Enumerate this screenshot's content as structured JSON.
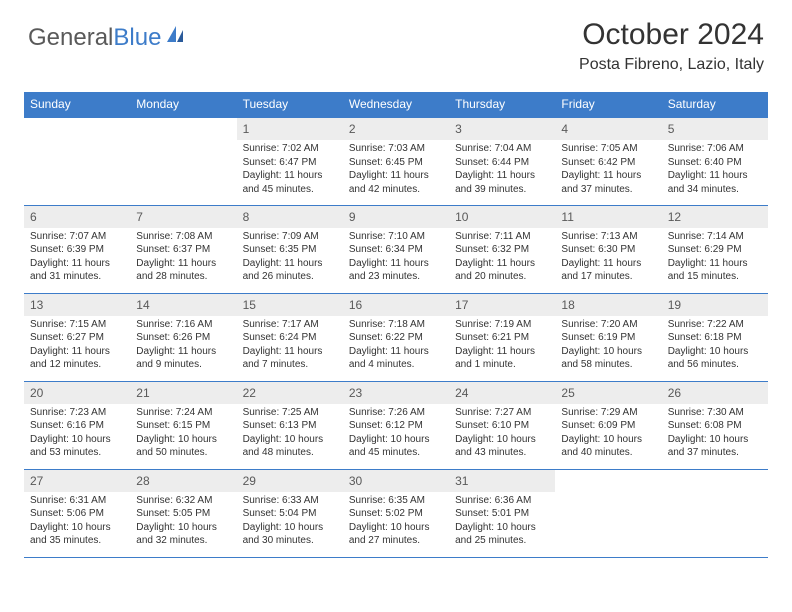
{
  "logo": {
    "text_main": "General",
    "text_accent": "Blue"
  },
  "title": "October 2024",
  "location": "Posta Fibreno, Lazio, Italy",
  "colors": {
    "header_bg": "#3d7cc9",
    "header_text": "#ffffff",
    "daynum_bg": "#ededed",
    "daynum_text": "#595959",
    "body_text": "#333333",
    "logo_gray": "#595959",
    "logo_blue": "#3d7cc9",
    "border": "#3d7cc9",
    "page_bg": "#ffffff"
  },
  "typography": {
    "title_fontsize": 30,
    "location_fontsize": 16,
    "header_fontsize": 12,
    "daynum_fontsize": 12,
    "body_fontsize": 10
  },
  "day_headers": [
    "Sunday",
    "Monday",
    "Tuesday",
    "Wednesday",
    "Thursday",
    "Friday",
    "Saturday"
  ],
  "weeks": [
    [
      null,
      null,
      {
        "n": "1",
        "sr": "Sunrise: 7:02 AM",
        "ss": "Sunset: 6:47 PM",
        "dl": "Daylight: 11 hours and 45 minutes."
      },
      {
        "n": "2",
        "sr": "Sunrise: 7:03 AM",
        "ss": "Sunset: 6:45 PM",
        "dl": "Daylight: 11 hours and 42 minutes."
      },
      {
        "n": "3",
        "sr": "Sunrise: 7:04 AM",
        "ss": "Sunset: 6:44 PM",
        "dl": "Daylight: 11 hours and 39 minutes."
      },
      {
        "n": "4",
        "sr": "Sunrise: 7:05 AM",
        "ss": "Sunset: 6:42 PM",
        "dl": "Daylight: 11 hours and 37 minutes."
      },
      {
        "n": "5",
        "sr": "Sunrise: 7:06 AM",
        "ss": "Sunset: 6:40 PM",
        "dl": "Daylight: 11 hours and 34 minutes."
      }
    ],
    [
      {
        "n": "6",
        "sr": "Sunrise: 7:07 AM",
        "ss": "Sunset: 6:39 PM",
        "dl": "Daylight: 11 hours and 31 minutes."
      },
      {
        "n": "7",
        "sr": "Sunrise: 7:08 AM",
        "ss": "Sunset: 6:37 PM",
        "dl": "Daylight: 11 hours and 28 minutes."
      },
      {
        "n": "8",
        "sr": "Sunrise: 7:09 AM",
        "ss": "Sunset: 6:35 PM",
        "dl": "Daylight: 11 hours and 26 minutes."
      },
      {
        "n": "9",
        "sr": "Sunrise: 7:10 AM",
        "ss": "Sunset: 6:34 PM",
        "dl": "Daylight: 11 hours and 23 minutes."
      },
      {
        "n": "10",
        "sr": "Sunrise: 7:11 AM",
        "ss": "Sunset: 6:32 PM",
        "dl": "Daylight: 11 hours and 20 minutes."
      },
      {
        "n": "11",
        "sr": "Sunrise: 7:13 AM",
        "ss": "Sunset: 6:30 PM",
        "dl": "Daylight: 11 hours and 17 minutes."
      },
      {
        "n": "12",
        "sr": "Sunrise: 7:14 AM",
        "ss": "Sunset: 6:29 PM",
        "dl": "Daylight: 11 hours and 15 minutes."
      }
    ],
    [
      {
        "n": "13",
        "sr": "Sunrise: 7:15 AM",
        "ss": "Sunset: 6:27 PM",
        "dl": "Daylight: 11 hours and 12 minutes."
      },
      {
        "n": "14",
        "sr": "Sunrise: 7:16 AM",
        "ss": "Sunset: 6:26 PM",
        "dl": "Daylight: 11 hours and 9 minutes."
      },
      {
        "n": "15",
        "sr": "Sunrise: 7:17 AM",
        "ss": "Sunset: 6:24 PM",
        "dl": "Daylight: 11 hours and 7 minutes."
      },
      {
        "n": "16",
        "sr": "Sunrise: 7:18 AM",
        "ss": "Sunset: 6:22 PM",
        "dl": "Daylight: 11 hours and 4 minutes."
      },
      {
        "n": "17",
        "sr": "Sunrise: 7:19 AM",
        "ss": "Sunset: 6:21 PM",
        "dl": "Daylight: 11 hours and 1 minute."
      },
      {
        "n": "18",
        "sr": "Sunrise: 7:20 AM",
        "ss": "Sunset: 6:19 PM",
        "dl": "Daylight: 10 hours and 58 minutes."
      },
      {
        "n": "19",
        "sr": "Sunrise: 7:22 AM",
        "ss": "Sunset: 6:18 PM",
        "dl": "Daylight: 10 hours and 56 minutes."
      }
    ],
    [
      {
        "n": "20",
        "sr": "Sunrise: 7:23 AM",
        "ss": "Sunset: 6:16 PM",
        "dl": "Daylight: 10 hours and 53 minutes."
      },
      {
        "n": "21",
        "sr": "Sunrise: 7:24 AM",
        "ss": "Sunset: 6:15 PM",
        "dl": "Daylight: 10 hours and 50 minutes."
      },
      {
        "n": "22",
        "sr": "Sunrise: 7:25 AM",
        "ss": "Sunset: 6:13 PM",
        "dl": "Daylight: 10 hours and 48 minutes."
      },
      {
        "n": "23",
        "sr": "Sunrise: 7:26 AM",
        "ss": "Sunset: 6:12 PM",
        "dl": "Daylight: 10 hours and 45 minutes."
      },
      {
        "n": "24",
        "sr": "Sunrise: 7:27 AM",
        "ss": "Sunset: 6:10 PM",
        "dl": "Daylight: 10 hours and 43 minutes."
      },
      {
        "n": "25",
        "sr": "Sunrise: 7:29 AM",
        "ss": "Sunset: 6:09 PM",
        "dl": "Daylight: 10 hours and 40 minutes."
      },
      {
        "n": "26",
        "sr": "Sunrise: 7:30 AM",
        "ss": "Sunset: 6:08 PM",
        "dl": "Daylight: 10 hours and 37 minutes."
      }
    ],
    [
      {
        "n": "27",
        "sr": "Sunrise: 6:31 AM",
        "ss": "Sunset: 5:06 PM",
        "dl": "Daylight: 10 hours and 35 minutes."
      },
      {
        "n": "28",
        "sr": "Sunrise: 6:32 AM",
        "ss": "Sunset: 5:05 PM",
        "dl": "Daylight: 10 hours and 32 minutes."
      },
      {
        "n": "29",
        "sr": "Sunrise: 6:33 AM",
        "ss": "Sunset: 5:04 PM",
        "dl": "Daylight: 10 hours and 30 minutes."
      },
      {
        "n": "30",
        "sr": "Sunrise: 6:35 AM",
        "ss": "Sunset: 5:02 PM",
        "dl": "Daylight: 10 hours and 27 minutes."
      },
      {
        "n": "31",
        "sr": "Sunrise: 6:36 AM",
        "ss": "Sunset: 5:01 PM",
        "dl": "Daylight: 10 hours and 25 minutes."
      },
      null,
      null
    ]
  ]
}
